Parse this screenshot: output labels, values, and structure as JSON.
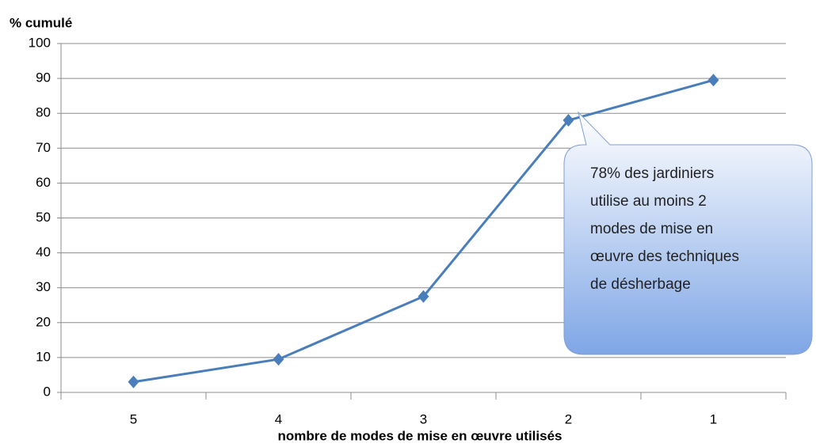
{
  "chart_data": {
    "type": "line",
    "y_label": "% cumulé",
    "x_label": "nombre de modes de mise en œuvre utilisés",
    "categories": [
      "5",
      "4",
      "3",
      "2",
      "1"
    ],
    "series": [
      {
        "name": "% cumulé",
        "color": "#4a7ebb",
        "values": [
          3,
          9.5,
          27.5,
          78,
          89.5
        ]
      }
    ],
    "ylim": [
      0,
      100
    ],
    "yticks": [
      0,
      10,
      20,
      30,
      40,
      50,
      60,
      70,
      80,
      90,
      100
    ],
    "grid": true,
    "annotation": [
      "78% des jardiniers",
      "utilise au moins 2",
      "modes de mise en",
      "œuvre des techniques",
      "de désherbage"
    ]
  }
}
